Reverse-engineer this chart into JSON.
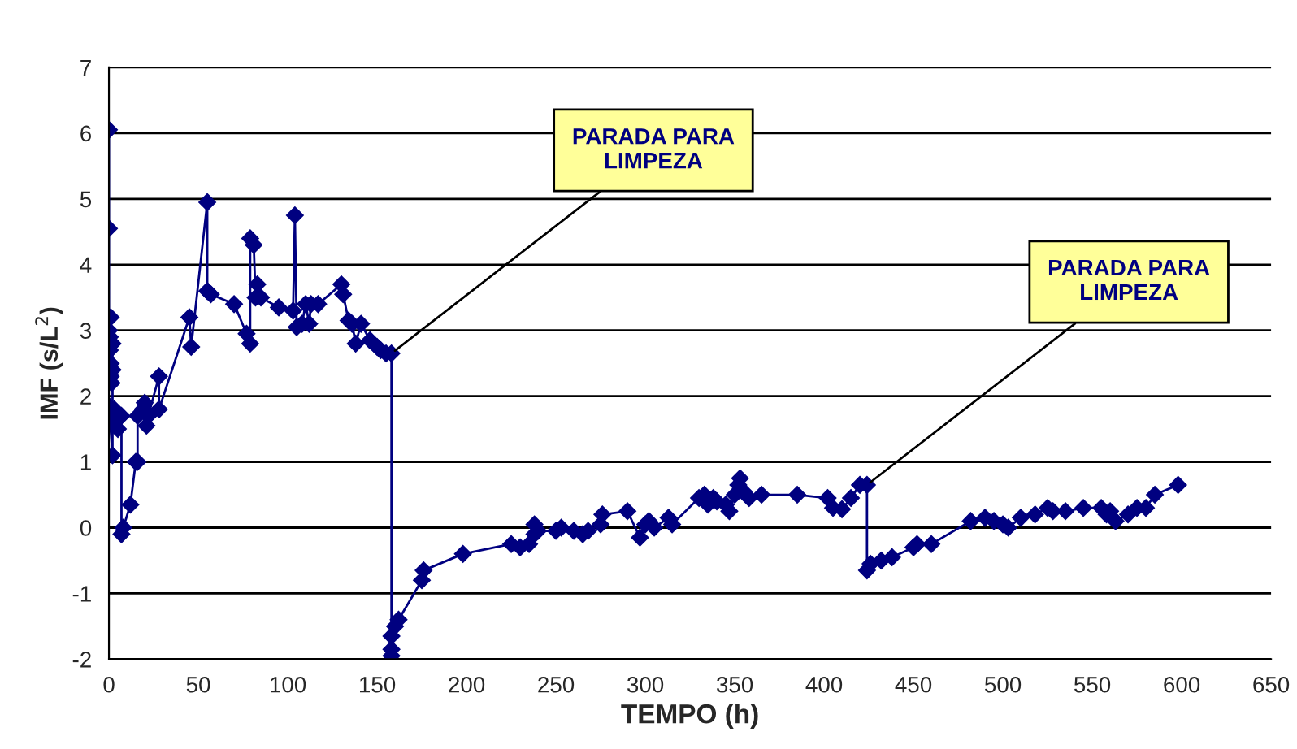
{
  "chart_data": {
    "type": "line",
    "xlabel": "TEMPO (h)",
    "ylabel": "IMF (s/L$^{2}$)",
    "xlim": [
      0,
      650
    ],
    "xticks": [
      0,
      50,
      100,
      150,
      200,
      250,
      300,
      350,
      400,
      450,
      500,
      550,
      600,
      650
    ],
    "ylim": [
      -2,
      7
    ],
    "yticks": [
      -2,
      -1,
      0,
      1,
      2,
      3,
      4,
      5,
      6,
      7
    ],
    "grid": "y",
    "marker": "diamond",
    "line_style": "solid",
    "legend": false,
    "series": [
      {
        "color": "#000080",
        "x": [
          0,
          0,
          0,
          0.5,
          1,
          0.5,
          1,
          1,
          1.5,
          2,
          2,
          2,
          0,
          3,
          3,
          5,
          4,
          7,
          7,
          8,
          12,
          15,
          16,
          16,
          19,
          20,
          21,
          22,
          28,
          28,
          45,
          46,
          55,
          55,
          57,
          70,
          77,
          79,
          79,
          81,
          82,
          83,
          85,
          95,
          103,
          104,
          105,
          108,
          110,
          112,
          113,
          117,
          130,
          131,
          134,
          136,
          138,
          141,
          146,
          150,
          152,
          155,
          158,
          158,
          158,
          158,
          160,
          162,
          175,
          176,
          198,
          225,
          230,
          235,
          238,
          238,
          240,
          250,
          253,
          260,
          265,
          268,
          275,
          276,
          290,
          297,
          300,
          302,
          305,
          313,
          315,
          330,
          333,
          335,
          338,
          340,
          345,
          347,
          350,
          352,
          353,
          355,
          358,
          365,
          385,
          402,
          405,
          410,
          415,
          420,
          424,
          424,
          426,
          432,
          438,
          450,
          452,
          460,
          482,
          490,
          495,
          500,
          503,
          510,
          518,
          525,
          528,
          535,
          545,
          555,
          558,
          560,
          563,
          570,
          575,
          580,
          585,
          598
        ],
        "values": [
          6.05,
          4.55,
          3.0,
          2.7,
          2.3,
          2.9,
          3.2,
          2.5,
          2.2,
          2.8,
          2.4,
          1.1,
          1.85,
          1.8,
          1.6,
          1.5,
          1.75,
          1.7,
          -0.1,
          0.0,
          0.35,
          1.0,
          1.0,
          1.7,
          1.8,
          1.9,
          1.55,
          1.7,
          2.3,
          1.8,
          3.2,
          2.75,
          4.95,
          3.6,
          3.55,
          3.4,
          2.95,
          2.8,
          4.4,
          4.3,
          3.5,
          3.7,
          3.5,
          3.35,
          3.3,
          4.75,
          3.05,
          3.1,
          3.4,
          3.1,
          3.4,
          3.4,
          3.7,
          3.55,
          3.15,
          3.1,
          2.8,
          3.1,
          2.85,
          2.75,
          2.7,
          2.65,
          2.65,
          -1.95,
          -1.85,
          -1.65,
          -1.5,
          -1.4,
          -0.8,
          -0.65,
          -0.4,
          -0.25,
          -0.3,
          -0.25,
          -0.1,
          0.05,
          -0.05,
          -0.05,
          0.0,
          -0.05,
          -0.1,
          -0.05,
          0.05,
          0.2,
          0.25,
          -0.15,
          0.05,
          0.1,
          0.0,
          0.15,
          0.05,
          0.45,
          0.5,
          0.35,
          0.45,
          0.4,
          0.35,
          0.25,
          0.5,
          0.65,
          0.75,
          0.55,
          0.45,
          0.5,
          0.5,
          0.45,
          0.3,
          0.28,
          0.45,
          0.65,
          0.65,
          -0.65,
          -0.55,
          -0.5,
          -0.45,
          -0.3,
          -0.25,
          -0.25,
          0.1,
          0.15,
          0.1,
          0.05,
          0.0,
          0.15,
          0.2,
          0.3,
          0.25,
          0.25,
          0.3,
          0.3,
          0.2,
          0.25,
          0.1,
          0.2,
          0.3,
          0.3,
          0.5,
          0.65
        ]
      }
    ],
    "annotations": [
      {
        "text": "PARADA PARA\nLIMPEZA",
        "x": 158,
        "y": 2.65
      },
      {
        "text": "PARADA PARA\nLIMPEZA",
        "x": 424,
        "y": 0.65
      }
    ]
  }
}
